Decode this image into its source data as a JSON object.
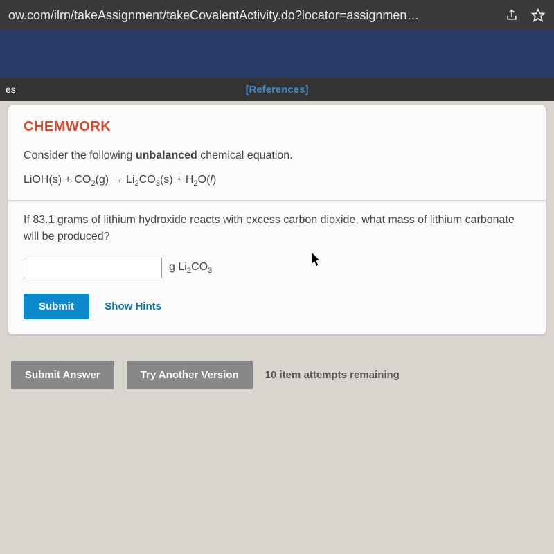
{
  "browser": {
    "url": "ow.com/ilrn/takeAssignment/takeCovalentActivity.do?locator=assignmen…"
  },
  "topbar": {
    "tab_label": "es",
    "references_label": "[References]"
  },
  "card": {
    "title": "CHEMWORK",
    "prompt_prefix": "Consider the following ",
    "prompt_bold": "unbalanced",
    "prompt_suffix": " chemical equation.",
    "equation_html": "LiOH(s) + CO<sub>2</sub>(g) → Li<sub>2</sub>CO<sub>3</sub>(s) + H<sub>2</sub>O(<i>l</i>)",
    "question": "If 83.1 grams of lithium hydroxide reacts with excess carbon dioxide, what mass of lithium carbonate will be produced?",
    "unit_html": "g Li<sub>2</sub>CO<sub>3</sub>",
    "submit_label": "Submit",
    "hints_label": "Show Hints"
  },
  "footer": {
    "submit_answer_label": "Submit Answer",
    "try_another_label": "Try Another Version",
    "attempts_text": "10 item attempts remaining"
  },
  "colors": {
    "accent_orange": "#d94a2a",
    "accent_blue": "#0a8acc",
    "link_blue": "#3a8acc",
    "card_bg": "#fbfbfb",
    "page_bg": "#d8d5cf",
    "gray_btn": "#888888"
  }
}
